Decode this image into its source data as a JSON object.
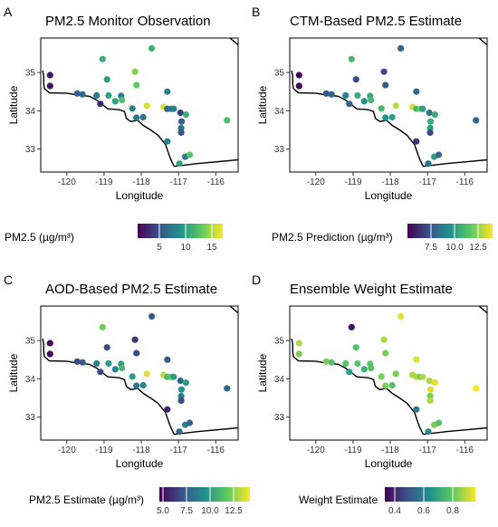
{
  "figure": {
    "panels": [
      {
        "label": "A",
        "title": "PM2.5 Monitor Observation",
        "colorbar_title": "PM2.5 (µg/m³)",
        "colorbar_ticks": [
          "5",
          "10",
          "15"
        ]
      },
      {
        "label": "B",
        "title": "CTM-Based PM2.5 Estimate",
        "colorbar_title": "PM2.5 Prediction (µg/m³)",
        "colorbar_ticks": [
          "7.5",
          "10.0",
          "12.5"
        ]
      },
      {
        "label": "C",
        "title": "AOD-Based PM2.5 Estimate",
        "colorbar_title": "PM2.5 Estimate (µg/m³)",
        "colorbar_ticks": [
          "5.0",
          "7.5",
          "10.0",
          "12.5"
        ]
      },
      {
        "label": "D",
        "title": "Ensemble Weight Estimate",
        "colorbar_title": "Weight Estimate",
        "colorbar_ticks": [
          "0.4",
          "0.6",
          "0.8"
        ]
      }
    ],
    "xlabel": "Longitude",
    "ylabel": "Latitude",
    "x_ticks": [
      "-120",
      "-119",
      "-118",
      "-117",
      "-116"
    ],
    "y_ticks": [
      "33",
      "34",
      "35"
    ]
  },
  "chart_data": [
    {
      "type": "scatter",
      "panel": "A",
      "title": "PM2.5 Monitor Observation",
      "xlabel": "Longitude",
      "ylabel": "Latitude",
      "xlim": [
        -120.7,
        -115.4
      ],
      "ylim": [
        32.4,
        35.9
      ],
      "colorscale": "viridis",
      "color_range": [
        2,
        18
      ],
      "legend_title": "PM2.5 (µg/m³)",
      "points": [
        {
          "lon": -120.45,
          "lat": 34.93,
          "value": 3.0
        },
        {
          "lon": -120.45,
          "lat": 34.65,
          "value": 3.0
        },
        {
          "lon": -119.72,
          "lat": 34.45,
          "value": 7.0
        },
        {
          "lon": -119.58,
          "lat": 34.43,
          "value": 7.5
        },
        {
          "lon": -119.2,
          "lat": 34.4,
          "value": 8.5
        },
        {
          "lon": -119.1,
          "lat": 34.18,
          "value": 4.0
        },
        {
          "lon": -119.04,
          "lat": 35.35,
          "value": 12.0
        },
        {
          "lon": -118.92,
          "lat": 34.82,
          "value": 11.0
        },
        {
          "lon": -118.88,
          "lat": 34.4,
          "value": 11.0
        },
        {
          "lon": -118.7,
          "lat": 34.25,
          "value": 11.0
        },
        {
          "lon": -118.54,
          "lat": 34.39,
          "value": 9.0
        },
        {
          "lon": -118.52,
          "lat": 34.28,
          "value": 13.0
        },
        {
          "lon": -118.24,
          "lat": 34.06,
          "value": 9.0
        },
        {
          "lon": -118.17,
          "lat": 35.02,
          "value": 15.0
        },
        {
          "lon": -118.13,
          "lat": 34.67,
          "value": 14.0
        },
        {
          "lon": -118.13,
          "lat": 33.82,
          "value": 8.5
        },
        {
          "lon": -117.95,
          "lat": 33.83,
          "value": 8.0
        },
        {
          "lon": -117.85,
          "lat": 34.13,
          "value": 17.0
        },
        {
          "lon": -117.72,
          "lat": 35.63,
          "value": 12.0
        },
        {
          "lon": -117.4,
          "lat": 34.1,
          "value": 17.0
        },
        {
          "lon": -117.3,
          "lat": 34.05,
          "value": 7.0
        },
        {
          "lon": -117.2,
          "lat": 34.05,
          "value": 8.5
        },
        {
          "lon": -117.3,
          "lat": 34.5,
          "value": 9.0
        },
        {
          "lon": -117.13,
          "lat": 34.05,
          "value": 9.0
        },
        {
          "lon": -117.3,
          "lat": 33.2,
          "value": 9.0
        },
        {
          "lon": -116.93,
          "lat": 33.55,
          "value": 8.0
        },
        {
          "lon": -116.93,
          "lat": 33.43,
          "value": 6.0
        },
        {
          "lon": -116.92,
          "lat": 33.72,
          "value": 6.5
        },
        {
          "lon": -116.95,
          "lat": 33.95,
          "value": 5.0
        },
        {
          "lon": -116.8,
          "lat": 33.9,
          "value": 12.0
        },
        {
          "lon": -116.82,
          "lat": 32.8,
          "value": 8.5
        },
        {
          "lon": -116.98,
          "lat": 32.62,
          "value": 11.0
        },
        {
          "lon": -116.7,
          "lat": 32.85,
          "value": 13.5
        },
        {
          "lon": -115.7,
          "lat": 33.75,
          "value": 13.0
        }
      ]
    },
    {
      "type": "scatter",
      "panel": "B",
      "title": "CTM-Based PM2.5 Estimate",
      "xlabel": "Longitude",
      "ylabel": "Latitude",
      "xlim": [
        -120.7,
        -115.4
      ],
      "ylim": [
        32.4,
        35.9
      ],
      "colorscale": "viridis",
      "color_range": [
        5,
        14
      ],
      "legend_title": "PM2.5 Prediction (µg/m³)",
      "points": [
        {
          "lon": -120.45,
          "lat": 34.93,
          "value": 5.0
        },
        {
          "lon": -120.45,
          "lat": 34.65,
          "value": 5.0
        },
        {
          "lon": -119.72,
          "lat": 34.45,
          "value": 7.5
        },
        {
          "lon": -119.58,
          "lat": 34.43,
          "value": 8.0
        },
        {
          "lon": -119.2,
          "lat": 34.4,
          "value": 9.0
        },
        {
          "lon": -119.1,
          "lat": 34.18,
          "value": 8.0
        },
        {
          "lon": -119.04,
          "lat": 35.35,
          "value": 11.0
        },
        {
          "lon": -118.92,
          "lat": 34.82,
          "value": 7.0
        },
        {
          "lon": -118.88,
          "lat": 34.4,
          "value": 10.5
        },
        {
          "lon": -118.7,
          "lat": 34.25,
          "value": 9.5
        },
        {
          "lon": -118.54,
          "lat": 34.39,
          "value": 10.5
        },
        {
          "lon": -118.52,
          "lat": 34.28,
          "value": 11.0
        },
        {
          "lon": -118.24,
          "lat": 34.06,
          "value": 11.0
        },
        {
          "lon": -118.17,
          "lat": 35.02,
          "value": 7.0
        },
        {
          "lon": -118.13,
          "lat": 34.67,
          "value": 7.5
        },
        {
          "lon": -118.13,
          "lat": 33.82,
          "value": 9.5
        },
        {
          "lon": -117.95,
          "lat": 33.83,
          "value": 10.0
        },
        {
          "lon": -117.85,
          "lat": 34.13,
          "value": 13.0
        },
        {
          "lon": -117.72,
          "lat": 35.63,
          "value": 8.0
        },
        {
          "lon": -117.4,
          "lat": 34.1,
          "value": 13.5
        },
        {
          "lon": -117.3,
          "lat": 34.05,
          "value": 11.0
        },
        {
          "lon": -117.2,
          "lat": 34.05,
          "value": 12.0
        },
        {
          "lon": -117.3,
          "lat": 34.5,
          "value": 8.0
        },
        {
          "lon": -117.13,
          "lat": 34.05,
          "value": 10.0
        },
        {
          "lon": -117.3,
          "lat": 33.2,
          "value": 6.5
        },
        {
          "lon": -116.93,
          "lat": 33.55,
          "value": 10.0
        },
        {
          "lon": -116.93,
          "lat": 33.43,
          "value": 7.0
        },
        {
          "lon": -116.92,
          "lat": 33.72,
          "value": 10.5
        },
        {
          "lon": -116.95,
          "lat": 33.95,
          "value": 8.5
        },
        {
          "lon": -116.8,
          "lat": 33.9,
          "value": 10.5
        },
        {
          "lon": -116.82,
          "lat": 32.8,
          "value": 10.0
        },
        {
          "lon": -116.98,
          "lat": 32.62,
          "value": 8.5
        },
        {
          "lon": -116.7,
          "lat": 32.85,
          "value": 8.0
        },
        {
          "lon": -115.7,
          "lat": 33.75,
          "value": 8.0
        }
      ]
    },
    {
      "type": "scatter",
      "panel": "C",
      "title": "AOD-Based PM2.5 Estimate",
      "xlabel": "Longitude",
      "ylabel": "Latitude",
      "xlim": [
        -120.7,
        -115.4
      ],
      "ylim": [
        32.4,
        35.9
      ],
      "colorscale": "viridis",
      "color_range": [
        5,
        14
      ],
      "legend_title": "PM2.5 Estimate (µg/m³)",
      "points": [
        {
          "lon": -120.45,
          "lat": 34.93,
          "value": 5.0
        },
        {
          "lon": -120.45,
          "lat": 34.65,
          "value": 5.0
        },
        {
          "lon": -119.72,
          "lat": 34.45,
          "value": 7.0
        },
        {
          "lon": -119.58,
          "lat": 34.43,
          "value": 7.5
        },
        {
          "lon": -119.2,
          "lat": 34.4,
          "value": 9.0
        },
        {
          "lon": -119.1,
          "lat": 34.18,
          "value": 7.0
        },
        {
          "lon": -119.04,
          "lat": 35.35,
          "value": 12.0
        },
        {
          "lon": -118.92,
          "lat": 34.82,
          "value": 7.0
        },
        {
          "lon": -118.88,
          "lat": 34.4,
          "value": 10.0
        },
        {
          "lon": -118.7,
          "lat": 34.25,
          "value": 9.0
        },
        {
          "lon": -118.54,
          "lat": 34.39,
          "value": 10.0
        },
        {
          "lon": -118.52,
          "lat": 34.28,
          "value": 11.0
        },
        {
          "lon": -118.24,
          "lat": 34.06,
          "value": 10.0
        },
        {
          "lon": -118.17,
          "lat": 35.02,
          "value": 6.5
        },
        {
          "lon": -118.13,
          "lat": 34.67,
          "value": 7.0
        },
        {
          "lon": -118.13,
          "lat": 33.82,
          "value": 8.5
        },
        {
          "lon": -117.95,
          "lat": 33.83,
          "value": 9.0
        },
        {
          "lon": -117.85,
          "lat": 34.13,
          "value": 13.5
        },
        {
          "lon": -117.72,
          "lat": 35.63,
          "value": 7.5
        },
        {
          "lon": -117.4,
          "lat": 34.1,
          "value": 13.0
        },
        {
          "lon": -117.3,
          "lat": 34.05,
          "value": 11.0
        },
        {
          "lon": -117.2,
          "lat": 34.05,
          "value": 11.5
        },
        {
          "lon": -117.3,
          "lat": 34.5,
          "value": 7.5
        },
        {
          "lon": -117.13,
          "lat": 34.05,
          "value": 10.0
        },
        {
          "lon": -117.3,
          "lat": 33.2,
          "value": 6.0
        },
        {
          "lon": -116.93,
          "lat": 33.55,
          "value": 9.0
        },
        {
          "lon": -116.93,
          "lat": 33.43,
          "value": 7.0
        },
        {
          "lon": -116.92,
          "lat": 33.72,
          "value": 9.5
        },
        {
          "lon": -116.95,
          "lat": 33.95,
          "value": 8.0
        },
        {
          "lon": -116.8,
          "lat": 33.9,
          "value": 10.0
        },
        {
          "lon": -116.82,
          "lat": 32.8,
          "value": 9.0
        },
        {
          "lon": -116.98,
          "lat": 32.62,
          "value": 8.0
        },
        {
          "lon": -116.7,
          "lat": 32.85,
          "value": 8.0
        },
        {
          "lon": -115.7,
          "lat": 33.75,
          "value": 8.0
        }
      ]
    },
    {
      "type": "scatter",
      "panel": "D",
      "title": "Ensemble Weight Estimate",
      "xlabel": "Longitude",
      "ylabel": "Latitude",
      "xlim": [
        -120.7,
        -115.4
      ],
      "ylim": [
        32.4,
        35.9
      ],
      "colorscale": "viridis",
      "color_range": [
        0.35,
        0.98
      ],
      "legend_title": "Weight Estimate",
      "points": [
        {
          "lon": -120.45,
          "lat": 34.93,
          "value": 0.9
        },
        {
          "lon": -120.45,
          "lat": 34.65,
          "value": 0.85
        },
        {
          "lon": -119.72,
          "lat": 34.45,
          "value": 0.85
        },
        {
          "lon": -119.58,
          "lat": 34.43,
          "value": 0.8
        },
        {
          "lon": -119.2,
          "lat": 34.4,
          "value": 0.8
        },
        {
          "lon": -119.1,
          "lat": 34.18,
          "value": 0.7
        },
        {
          "lon": -119.04,
          "lat": 35.35,
          "value": 0.38
        },
        {
          "lon": -118.92,
          "lat": 34.82,
          "value": 0.8
        },
        {
          "lon": -118.88,
          "lat": 34.4,
          "value": 0.8
        },
        {
          "lon": -118.7,
          "lat": 34.25,
          "value": 0.75
        },
        {
          "lon": -118.54,
          "lat": 34.39,
          "value": 0.8
        },
        {
          "lon": -118.52,
          "lat": 34.28,
          "value": 0.8
        },
        {
          "lon": -118.24,
          "lat": 34.06,
          "value": 0.85
        },
        {
          "lon": -118.17,
          "lat": 35.02,
          "value": 0.9
        },
        {
          "lon": -118.13,
          "lat": 34.67,
          "value": 0.85
        },
        {
          "lon": -118.13,
          "lat": 33.82,
          "value": 0.85
        },
        {
          "lon": -117.95,
          "lat": 33.83,
          "value": 0.8
        },
        {
          "lon": -117.85,
          "lat": 34.13,
          "value": 0.85
        },
        {
          "lon": -117.72,
          "lat": 35.63,
          "value": 0.95
        },
        {
          "lon": -117.4,
          "lat": 34.1,
          "value": 0.9
        },
        {
          "lon": -117.3,
          "lat": 34.05,
          "value": 0.9
        },
        {
          "lon": -117.2,
          "lat": 34.05,
          "value": 0.85
        },
        {
          "lon": -117.3,
          "lat": 34.5,
          "value": 0.95
        },
        {
          "lon": -117.13,
          "lat": 34.05,
          "value": 0.9
        },
        {
          "lon": -117.3,
          "lat": 33.2,
          "value": 0.6
        },
        {
          "lon": -116.93,
          "lat": 33.55,
          "value": 0.85
        },
        {
          "lon": -116.93,
          "lat": 33.43,
          "value": 0.9
        },
        {
          "lon": -116.92,
          "lat": 33.72,
          "value": 0.95
        },
        {
          "lon": -116.95,
          "lat": 33.95,
          "value": 0.9
        },
        {
          "lon": -116.8,
          "lat": 33.9,
          "value": 0.95
        },
        {
          "lon": -116.82,
          "lat": 32.8,
          "value": 0.85
        },
        {
          "lon": -116.98,
          "lat": 32.62,
          "value": 0.65
        },
        {
          "lon": -116.7,
          "lat": 32.85,
          "value": 0.8
        },
        {
          "lon": -115.7,
          "lat": 33.75,
          "value": 0.98
        }
      ]
    }
  ]
}
